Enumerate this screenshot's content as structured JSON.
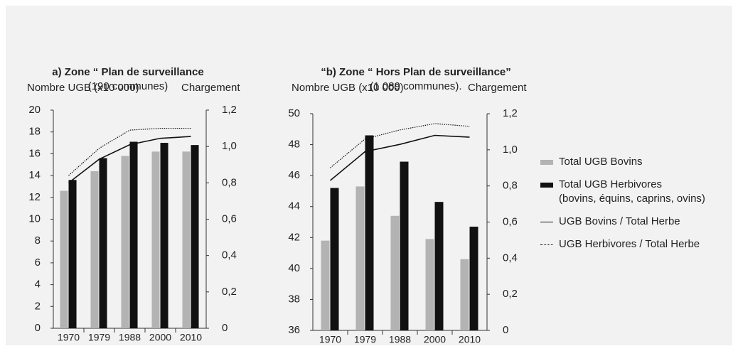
{
  "chart_data": [
    {
      "type": "bar",
      "title": "a) Zone “ Plan de surveillance",
      "subtitle": "(190 communes)",
      "y_label": "Nombre UGB (x10 000)",
      "y2_label": "Chargement",
      "categories": [
        "1970",
        "1979",
        "1988",
        "2000",
        "2010"
      ],
      "ylim": [
        0,
        20
      ],
      "yticks": [
        0,
        2,
        4,
        6,
        8,
        10,
        12,
        14,
        16,
        18,
        20
      ],
      "y2lim": [
        0,
        1.2
      ],
      "y2ticks": [
        0,
        {
          "value": 0.2,
          "label": "0,2"
        },
        {
          "value": 0.4,
          "label": "0,4"
        },
        {
          "value": 0.6,
          "label": "0,6"
        },
        {
          "value": 0.8,
          "label": "0,8"
        },
        {
          "value": 1.0,
          "label": "1,0"
        },
        {
          "value": 1.2,
          "label": "1,2"
        }
      ],
      "series": [
        {
          "type": "bar",
          "color": "#b3b3b3",
          "values": [
            12.6,
            14.4,
            15.8,
            16.2,
            16.2
          ]
        },
        {
          "type": "bar",
          "color": "#111111",
          "values": [
            13.6,
            15.6,
            17.1,
            17.0,
            16.8
          ]
        },
        {
          "type": "line",
          "color": "#111111",
          "style": "solid",
          "axis": "y2",
          "values": [
            0.8,
            0.93,
            1.01,
            1.045,
            1.055
          ]
        },
        {
          "type": "line",
          "color": "#111111",
          "style": "dotted",
          "axis": "y2",
          "values": [
            0.84,
            0.99,
            1.09,
            1.1,
            1.1
          ]
        }
      ]
    },
    {
      "type": "bar",
      "title": "“b) Zone “ Hors Plan de surveillance”",
      "subtitle": "(1 089 communes).",
      "y_label": "Nombre UGB (x10 000)",
      "y2_label": "Chargement",
      "categories": [
        "1970",
        "1979",
        "1988",
        "2000",
        "2010"
      ],
      "ylim": [
        36,
        50
      ],
      "yticks": [
        36,
        38,
        40,
        42,
        44,
        46,
        48,
        50
      ],
      "y2lim": [
        0,
        1.2
      ],
      "y2ticks": [
        0,
        {
          "value": 0.2,
          "label": "0,2"
        },
        {
          "value": 0.4,
          "label": "0,4"
        },
        {
          "value": 0.6,
          "label": "0,6"
        },
        {
          "value": 0.8,
          "label": "0,8"
        },
        {
          "value": 1.0,
          "label": "1,0"
        },
        {
          "value": 1.2,
          "label": "1,2"
        }
      ],
      "series": [
        {
          "type": "bar",
          "name": "Total UGB Bovins",
          "color": "#b3b3b3",
          "values": [
            41.8,
            45.3,
            43.4,
            41.9,
            40.6
          ]
        },
        {
          "type": "bar",
          "name": "Total UGB Herbivores\n(bovins, équins, caprins, ovins)",
          "color": "#111111",
          "values": [
            45.2,
            48.6,
            46.9,
            44.3,
            42.7
          ]
        },
        {
          "type": "line",
          "name": "UGB Bovins / Total Herbe",
          "color": "#111111",
          "style": "solid",
          "axis": "y2",
          "values": [
            0.83,
            0.99,
            1.03,
            1.08,
            1.07
          ]
        },
        {
          "type": "line",
          "name": "UGB Herbivores / Total Herbe",
          "color": "#111111",
          "style": "dotted",
          "axis": "y2",
          "values": [
            0.9,
            1.06,
            1.11,
            1.145,
            1.13
          ]
        }
      ]
    }
  ]
}
